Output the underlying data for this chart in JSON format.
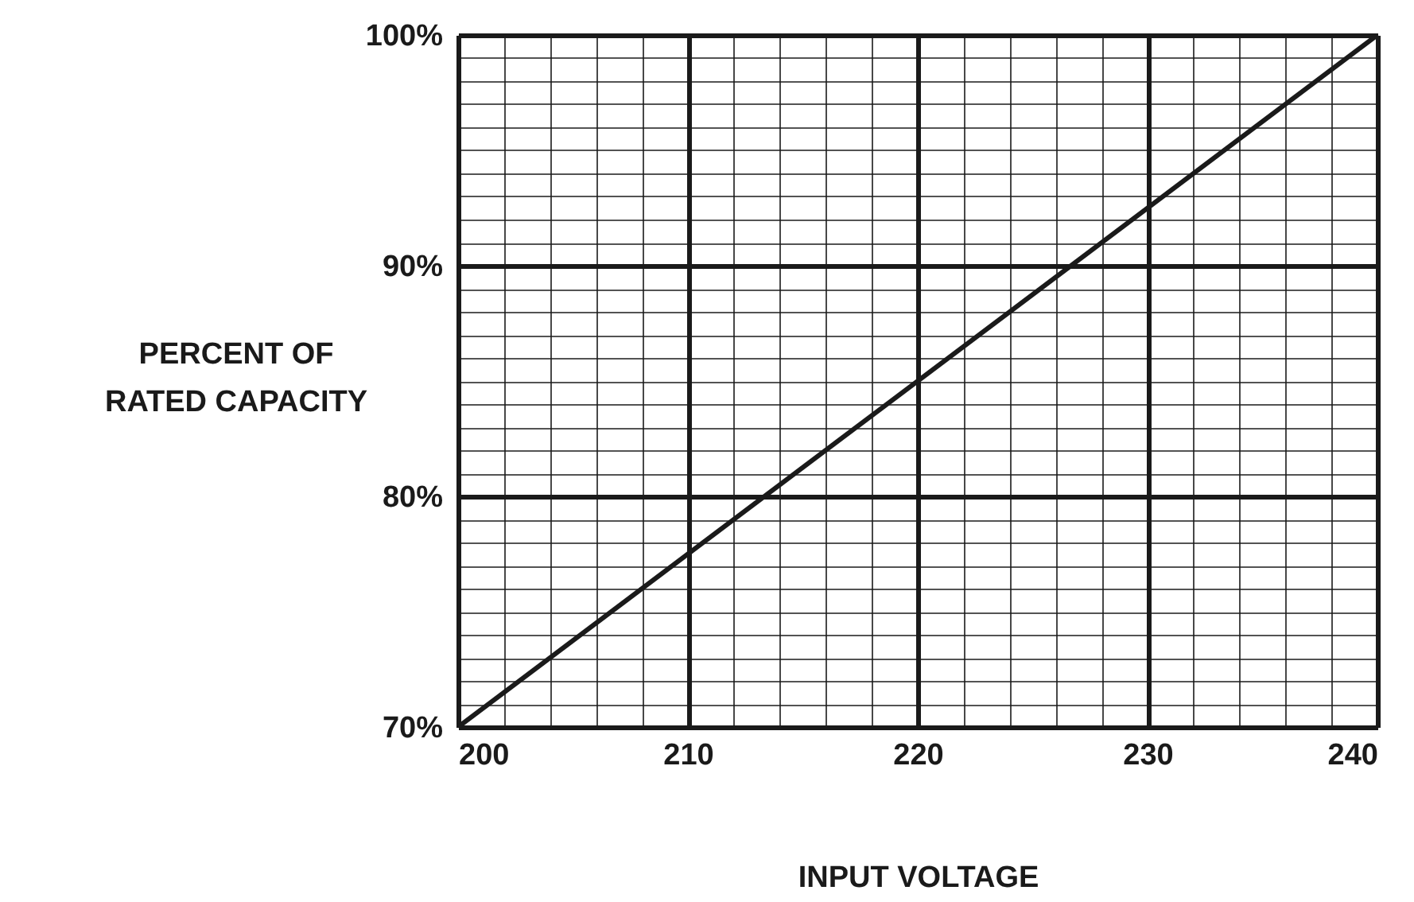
{
  "chart_data": {
    "type": "line",
    "xlabel": "INPUT VOLTAGE",
    "ylabel": "PERCENT OF RATED CAPACITY",
    "x": [
      200,
      240
    ],
    "series": [
      {
        "color": "#1a1a1a",
        "values": [
          70,
          100
        ]
      }
    ],
    "xlim": [
      200,
      240
    ],
    "xticks": [
      200,
      {
        "value": 202,
        "label": null
      },
      {
        "value": 204,
        "label": null
      },
      {
        "value": 206,
        "label": null
      },
      {
        "value": 208,
        "label": null
      },
      210,
      {
        "value": 212,
        "label": null
      },
      {
        "value": 214,
        "label": null
      },
      {
        "value": 216,
        "label": null
      },
      {
        "value": 218,
        "label": null
      },
      220,
      {
        "value": 222,
        "label": null
      },
      {
        "value": 224,
        "label": null
      },
      {
        "value": 226,
        "label": null
      },
      {
        "value": 228,
        "label": null
      },
      230,
      {
        "value": 232,
        "label": null
      },
      {
        "value": 234,
        "label": null
      },
      {
        "value": 236,
        "label": null
      },
      {
        "value": 238,
        "label": null
      },
      240
    ],
    "ylim": [
      70,
      100
    ],
    "yticks": [
      {
        "value": 70,
        "label": "70%"
      },
      {
        "value": 71,
        "label": null
      },
      {
        "value": 72,
        "label": null
      },
      {
        "value": 73,
        "label": null
      },
      {
        "value": 74,
        "label": null
      },
      {
        "value": 75,
        "label": null
      },
      {
        "value": 76,
        "label": null
      },
      {
        "value": 77,
        "label": null
      },
      {
        "value": 78,
        "label": null
      },
      {
        "value": 79,
        "label": null
      },
      {
        "value": 80,
        "label": "80%"
      },
      {
        "value": 81,
        "label": null
      },
      {
        "value": 82,
        "label": null
      },
      {
        "value": 83,
        "label": null
      },
      {
        "value": 84,
        "label": null
      },
      {
        "value": 85,
        "label": null
      },
      {
        "value": 86,
        "label": null
      },
      {
        "value": 87,
        "label": null
      },
      {
        "value": 88,
        "label": null
      },
      {
        "value": 89,
        "label": null
      },
      {
        "value": 90,
        "label": "90%"
      },
      {
        "value": 91,
        "label": null
      },
      {
        "value": 92,
        "label": null
      },
      {
        "value": 93,
        "label": null
      },
      {
        "value": 94,
        "label": null
      },
      {
        "value": 95,
        "label": null
      },
      {
        "value": 96,
        "label": null
      },
      {
        "value": 97,
        "label": null
      },
      {
        "value": 98,
        "label": null
      },
      {
        "value": 99,
        "label": null
      },
      {
        "value": 100,
        "label": "100%"
      }
    ],
    "grid": true,
    "line_style": "solid"
  }
}
